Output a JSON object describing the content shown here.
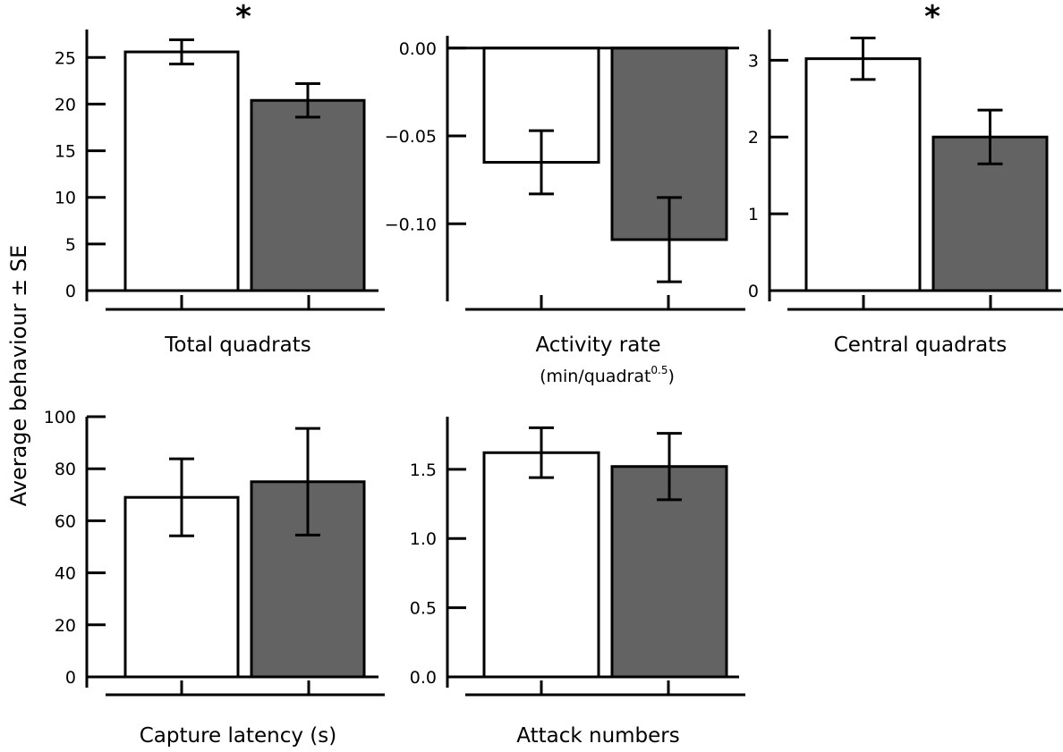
{
  "figure": {
    "ylabel": "Average behaviour ± SE",
    "colors": {
      "group1": "#ffffff",
      "group2": "#636363",
      "ink": "#000000"
    }
  },
  "chart_data": [
    {
      "type": "bar",
      "xlabel": "Total quadrats",
      "xlabel_sub": "",
      "ylim": [
        0,
        28
      ],
      "yticks": [
        0,
        5,
        10,
        15,
        20,
        25
      ],
      "ytick_labels": [
        "0",
        "5",
        "10",
        "15",
        "20",
        "25"
      ],
      "series": [
        {
          "values": [
            25.6
          ],
          "se": [
            1.3
          ]
        },
        {
          "values": [
            20.4
          ],
          "se": [
            1.8
          ]
        }
      ],
      "significance": "*"
    },
    {
      "type": "bar",
      "xlabel": "Activity rate",
      "xlabel_sub": "(min/quadrat",
      "xlabel_sup": "0.5",
      "xlabel_close": ")",
      "ylim": [
        -0.138,
        0.007
      ],
      "yticks": [
        0,
        -0.05,
        -0.1
      ],
      "ytick_labels": [
        "0.00",
        "−0.05",
        "−0.10"
      ],
      "series": [
        {
          "values": [
            -0.065
          ],
          "se": [
            0.018
          ]
        },
        {
          "values": [
            -0.109
          ],
          "se": [
            0.024
          ]
        }
      ],
      "significance": ""
    },
    {
      "type": "bar",
      "xlabel": "Central quadrats",
      "xlabel_sub": "",
      "ylim": [
        0,
        3.4
      ],
      "yticks": [
        0,
        1,
        2,
        3
      ],
      "ytick_labels": [
        "0",
        "1",
        "2",
        "3"
      ],
      "series": [
        {
          "values": [
            3.02
          ],
          "se": [
            0.27
          ]
        },
        {
          "values": [
            2.0
          ],
          "se": [
            0.35
          ]
        }
      ],
      "significance": "*"
    },
    {
      "type": "bar",
      "xlabel": "Capture latency (s)",
      "xlabel_sub": "",
      "ylim": [
        0,
        100
      ],
      "yticks": [
        0,
        20,
        40,
        60,
        80,
        100
      ],
      "ytick_labels": [
        "0",
        "20",
        "40",
        "60",
        "80",
        "100"
      ],
      "series": [
        {
          "values": [
            69
          ],
          "se": [
            14.8
          ]
        },
        {
          "values": [
            75
          ],
          "se": [
            20.5
          ]
        }
      ],
      "significance": ""
    },
    {
      "type": "bar",
      "xlabel": "Attack numbers",
      "xlabel_sub": "",
      "ylim": [
        0,
        1.88
      ],
      "yticks": [
        0,
        0.5,
        1.0,
        1.5
      ],
      "ytick_labels": [
        "0.0",
        "0.5",
        "1.0",
        "1.5"
      ],
      "series": [
        {
          "values": [
            1.62
          ],
          "se": [
            0.18
          ]
        },
        {
          "values": [
            1.52
          ],
          "se": [
            0.24
          ]
        }
      ],
      "significance": ""
    }
  ]
}
